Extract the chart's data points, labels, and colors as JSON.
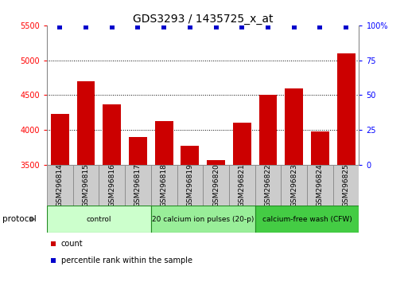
{
  "title": "GDS3293 / 1435725_x_at",
  "samples": [
    "GSM296814",
    "GSM296815",
    "GSM296816",
    "GSM296817",
    "GSM296818",
    "GSM296819",
    "GSM296820",
    "GSM296821",
    "GSM296822",
    "GSM296823",
    "GSM296824",
    "GSM296825"
  ],
  "counts": [
    4230,
    4700,
    4370,
    3900,
    4130,
    3780,
    3570,
    4110,
    4510,
    4600,
    3980,
    5100
  ],
  "percentile_ranks": [
    99,
    99,
    99,
    99,
    99,
    99,
    99,
    99,
    99,
    99,
    99,
    99
  ],
  "bar_color": "#cc0000",
  "percentile_color": "#0000cc",
  "ylim_left": [
    3500,
    5500
  ],
  "ylim_right": [
    0,
    100
  ],
  "yticks_left": [
    3500,
    4000,
    4500,
    5000,
    5500
  ],
  "yticks_right": [
    0,
    25,
    50,
    75,
    100
  ],
  "ytick_right_labels": [
    "0",
    "25",
    "50",
    "75",
    "100%"
  ],
  "groups": [
    {
      "label": "control",
      "start": 0,
      "end": 3,
      "color": "#ccffcc"
    },
    {
      "label": "20 calcium ion pulses (20-p)",
      "start": 4,
      "end": 7,
      "color": "#99ee99"
    },
    {
      "label": "calcium-free wash (CFW)",
      "start": 8,
      "end": 11,
      "color": "#44cc44"
    }
  ],
  "group_border_color": "#228822",
  "protocol_label": "protocol",
  "legend_count_label": "count",
  "legend_percentile_label": "percentile rank within the sample",
  "title_fontsize": 10,
  "tick_label_fontsize": 6.5,
  "background_color": "#ffffff",
  "tick_area_color": "#cccccc",
  "grid_color": "#000000"
}
